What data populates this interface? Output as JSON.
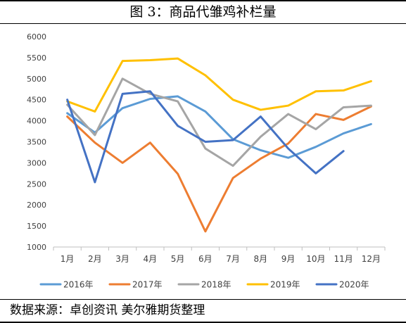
{
  "title": "图 3：商品代雏鸡补栏量",
  "source": "数据来源：卓创资讯 美尔雅期货整理",
  "chart_data": {
    "type": "line",
    "title": "",
    "xlabel": "",
    "ylabel": "",
    "categories": [
      "1月",
      "2月",
      "3月",
      "4月",
      "5月",
      "6月",
      "7月",
      "8月",
      "9月",
      "10月",
      "11月",
      "12月"
    ],
    "ylim": [
      1000,
      6000
    ],
    "yticks": [
      1000,
      1500,
      2000,
      2500,
      3000,
      3500,
      4000,
      4500,
      5000,
      5500,
      6000
    ],
    "grid": false,
    "legend_position": "bottom",
    "series": [
      {
        "name": "2016年",
        "color": "#5b9bd5",
        "values": [
          4180,
          3720,
          4300,
          4520,
          4580,
          4220,
          3560,
          3300,
          3120,
          3380,
          3700,
          3920
        ]
      },
      {
        "name": "2017年",
        "color": "#ed7d31",
        "values": [
          4100,
          3480,
          3000,
          3480,
          2740,
          1370,
          2640,
          3100,
          3460,
          4160,
          4020,
          4340
        ]
      },
      {
        "name": "2018年",
        "color": "#a5a5a5",
        "values": [
          4380,
          3660,
          5000,
          4640,
          4460,
          3340,
          2930,
          3620,
          4160,
          3800,
          4320,
          4360
        ]
      },
      {
        "name": "2019年",
        "color": "#ffc000",
        "values": [
          4460,
          4220,
          5420,
          5440,
          5480,
          5080,
          4500,
          4260,
          4360,
          4700,
          4720,
          4940
        ]
      },
      {
        "name": "2020年",
        "color": "#4472c4",
        "values": [
          4500,
          2540,
          4640,
          4700,
          3880,
          3500,
          3540,
          4100,
          3340,
          2750,
          3280,
          null
        ]
      }
    ]
  }
}
